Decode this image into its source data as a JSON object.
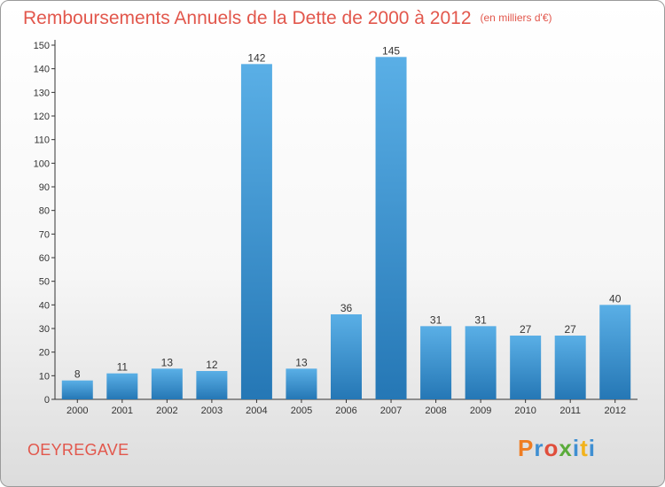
{
  "header": {
    "title": "Remboursements Annuels de la Dette de 2000 à 2012",
    "unit": "(en milliers d'€)"
  },
  "footer": {
    "commune": "OEYREGAVE",
    "logo": "Proxiti"
  },
  "colors": {
    "title": "#e2574c",
    "bar_light": "#5aafe6",
    "bar_dark": "#2577b5",
    "logo_letters": [
      "#ef7d22",
      "#3f8fd2",
      "#e04e3c",
      "#5aab3a",
      "#3f8fd2",
      "#f2b21b",
      "#3f8fd2"
    ]
  },
  "chart_data": {
    "type": "bar",
    "categories": [
      "2000",
      "2001",
      "2002",
      "2003",
      "2004",
      "2005",
      "2006",
      "2007",
      "2008",
      "2009",
      "2010",
      "2011",
      "2012"
    ],
    "values": [
      8,
      11,
      13,
      12,
      142,
      13,
      36,
      145,
      31,
      31,
      27,
      27,
      40
    ],
    "title": "Remboursements Annuels de la Dette de 2000 à 2012",
    "xlabel": "",
    "ylabel": "",
    "ylim": [
      0,
      150
    ],
    "yticks": [
      0,
      10,
      20,
      30,
      40,
      50,
      60,
      70,
      80,
      90,
      100,
      110,
      120,
      130,
      140,
      150
    ],
    "grid": false,
    "data_labels": true
  }
}
